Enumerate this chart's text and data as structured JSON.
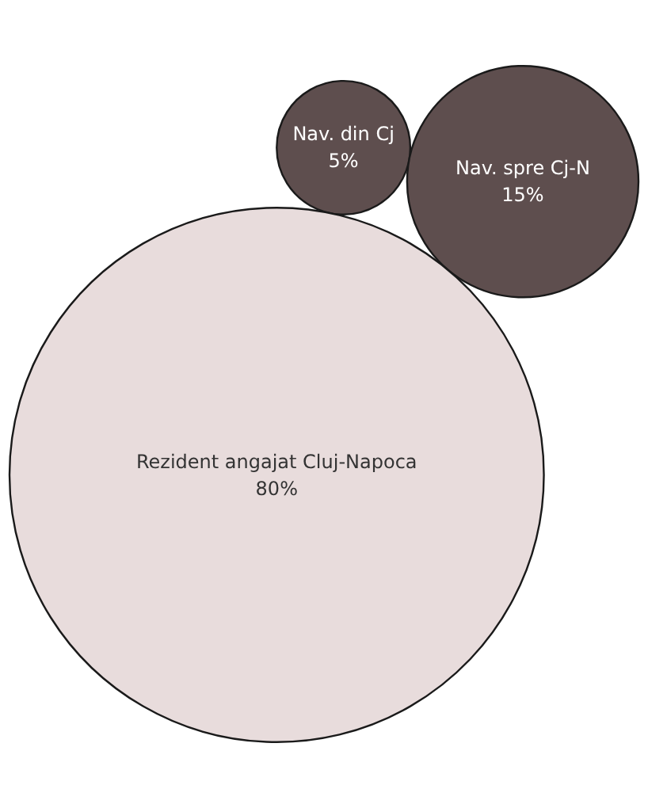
{
  "chart_data": {
    "type": "other",
    "categories": [
      "Nav. din Cj",
      "Nav. spre Cj-N",
      "Rezident angajat Cluj-Napoca"
    ],
    "values": [
      5,
      15,
      80
    ],
    "value_labels": [
      "5%",
      "15%",
      "80%"
    ],
    "colors": [
      "#5e4e4e",
      "#5e4e4e",
      "#e8dcdc"
    ]
  }
}
